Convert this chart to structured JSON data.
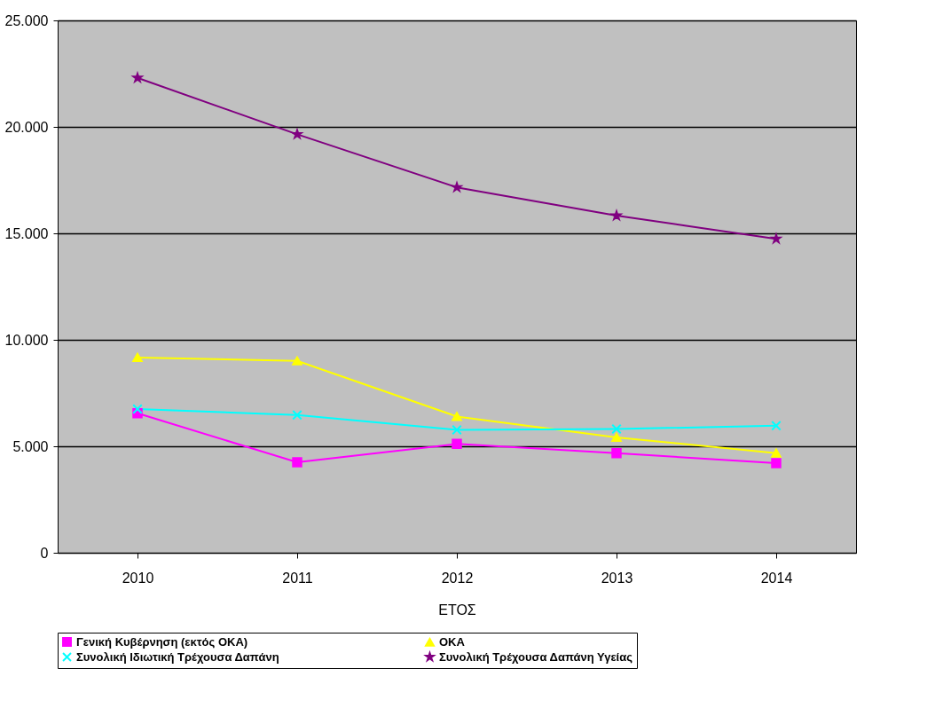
{
  "chart_data": {
    "type": "line",
    "xlabel": "ΕΤΟΣ",
    "categories": [
      "2010",
      "2011",
      "2012",
      "2013",
      "2014"
    ],
    "series": [
      {
        "name": "Γενική Κυβέρνηση (εκτός ΟΚΑ)",
        "color": "#ff00ff",
        "marker": "square",
        "values": [
          6550,
          4250,
          5110,
          4680,
          4210
        ]
      },
      {
        "name": "ΟΚΑ",
        "color": "#ffff00",
        "marker": "triangle",
        "values": [
          9170,
          9010,
          6400,
          5420,
          4680
        ]
      },
      {
        "name": "Συνολική Ιδιωτική Τρέχουσα Δαπάνη",
        "color": "#00ffff",
        "marker": "cross",
        "values": [
          6750,
          6470,
          5770,
          5810,
          5970
        ]
      },
      {
        "name": "Συνολική Τρέχουσα Δαπάνη Υγείας",
        "color": "#800080",
        "marker": "star",
        "values": [
          22300,
          19650,
          17160,
          15830,
          14740
        ]
      }
    ],
    "ylim": [
      0,
      25000
    ],
    "yticks": [
      0,
      {
        "value": 5000,
        "label": "5.000"
      },
      {
        "value": 10000,
        "label": "10.000"
      },
      {
        "value": 15000,
        "label": "15.000"
      },
      {
        "value": 20000,
        "label": "20.000"
      },
      {
        "value": 25000,
        "label": "25.000"
      }
    ],
    "grid": "y",
    "legend": "bottom",
    "line_style": "solid"
  }
}
